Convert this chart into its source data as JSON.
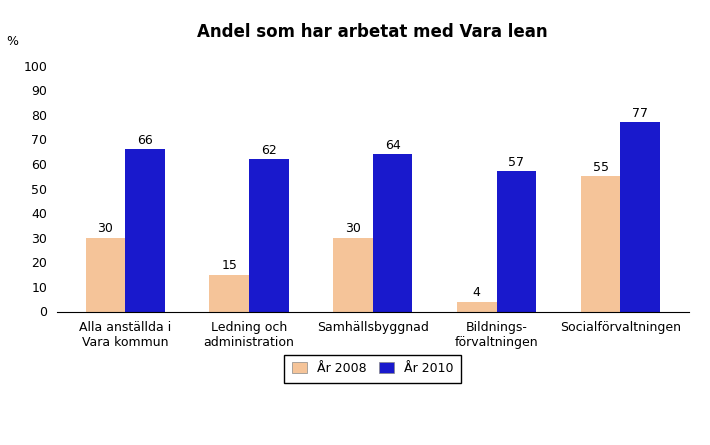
{
  "title": "Andel som har arbetat med Vara lean",
  "ylabel": "%",
  "categories": [
    "Alla anställda i\nVara kommun",
    "Ledning och\nadministration",
    "Samhällsbyggnad",
    "Bildnings-\nförvaltningen",
    "Socialförvaltningen"
  ],
  "values_2008": [
    30,
    15,
    30,
    4,
    55
  ],
  "values_2010": [
    66,
    62,
    64,
    57,
    77
  ],
  "color_2008": "#F5C499",
  "color_2010": "#1919CC",
  "legend_2008": "År 2008",
  "legend_2010": "År 2010",
  "ylim": [
    0,
    105
  ],
  "yticks": [
    0,
    10,
    20,
    30,
    40,
    50,
    60,
    70,
    80,
    90,
    100
  ],
  "bar_width": 0.32,
  "title_fontsize": 12,
  "axis_fontsize": 9,
  "label_fontsize": 9,
  "tick_fontsize": 9
}
